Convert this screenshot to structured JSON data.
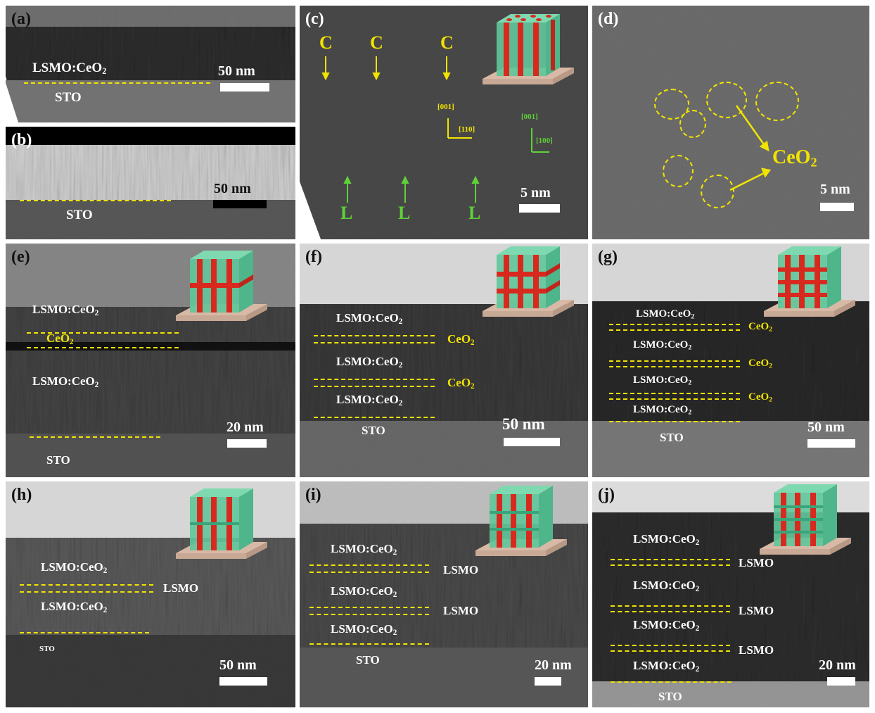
{
  "panels": {
    "a": {
      "label": "(a)",
      "layer": "LSMO:CeO",
      "sub": "2",
      "substrate": "STO",
      "scale": "50 nm"
    },
    "b": {
      "label": "(b)",
      "substrate": "STO",
      "scale": "50 nm"
    },
    "c": {
      "label": "(c)",
      "c_marker": "C",
      "l_marker": "L",
      "dir1_top": "[001]",
      "dir1_side": "[110]",
      "dir2_top": "[001]",
      "dir2_side": "[100]",
      "scale": "5 nm"
    },
    "d": {
      "label": "(d)",
      "particle": "CeO",
      "sub": "2",
      "scale": "5 nm"
    },
    "e": {
      "label": "(e)",
      "layer": "LSMO:CeO",
      "sub": "2",
      "interlayer": "CeO",
      "substrate": "STO",
      "scale": "20 nm"
    },
    "f": {
      "label": "(f)",
      "layer": "LSMO:CeO",
      "sub": "2",
      "interlayer": "CeO",
      "substrate": "STO",
      "scale": "50 nm"
    },
    "g": {
      "label": "(g)",
      "layer": "LSMO:CeO",
      "sub": "2",
      "interlayer": "CeO",
      "substrate": "STO",
      "scale": "50 nm"
    },
    "h": {
      "label": "(h)",
      "layer": "LSMO:CeO",
      "sub": "2",
      "interlayer": "LSMO",
      "substrate": "STO",
      "scale": "50 nm"
    },
    "i": {
      "label": "(i)",
      "layer": "LSMO:CeO",
      "sub": "2",
      "interlayer": "LSMO",
      "substrate": "STO",
      "scale": "20 nm"
    },
    "j": {
      "label": "(j)",
      "layer": "LSMO:CeO",
      "sub": "2",
      "interlayer": "LSMO",
      "substrate": "STO",
      "scale": "20 nm"
    }
  },
  "colors": {
    "annotation_yellow": "#f2e400",
    "arrow_green": "#5fd13a",
    "pillar_red": "#d8291f",
    "matrix_green": "#5fc79a",
    "substrate_tan": "#d8b9a6"
  }
}
